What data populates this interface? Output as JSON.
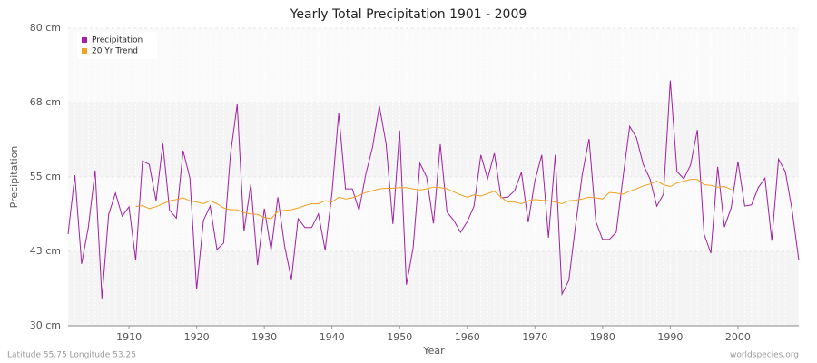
{
  "chart_data": {
    "type": "line",
    "title": "Yearly Total Precipitation 1901 - 2009",
    "x_label": "Year",
    "y_label": "Precipitation",
    "footer_left": "Latitude 55.75 Longitude 53.25",
    "footer_right": "worldspecies.org",
    "x": [
      1901,
      1902,
      1903,
      1904,
      1905,
      1906,
      1907,
      1908,
      1909,
      1910,
      1911,
      1912,
      1913,
      1914,
      1915,
      1916,
      1917,
      1918,
      1919,
      1920,
      1921,
      1922,
      1923,
      1924,
      1925,
      1926,
      1927,
      1928,
      1929,
      1930,
      1931,
      1932,
      1933,
      1934,
      1935,
      1936,
      1937,
      1938,
      1939,
      1940,
      1941,
      1942,
      1943,
      1944,
      1945,
      1946,
      1947,
      1948,
      1949,
      1950,
      1951,
      1952,
      1953,
      1954,
      1955,
      1956,
      1957,
      1958,
      1959,
      1960,
      1961,
      1962,
      1963,
      1964,
      1965,
      1966,
      1967,
      1968,
      1969,
      1970,
      1971,
      1972,
      1973,
      1974,
      1975,
      1976,
      1977,
      1978,
      1979,
      1980,
      1981,
      1982,
      1983,
      1984,
      1985,
      1986,
      1987,
      1988,
      1989,
      1990,
      1991,
      1992,
      1993,
      1994,
      1995,
      1996,
      1997,
      1998,
      1999,
      2000,
      2001,
      2002,
      2003,
      2004,
      2005,
      2006,
      2007,
      2008,
      2009
    ],
    "xlim": [
      1901,
      2009
    ],
    "xticks": [
      1910,
      1920,
      1930,
      1940,
      1950,
      1960,
      1970,
      1980,
      1990,
      2000
    ],
    "ylim": [
      30,
      80
    ],
    "yticks": [
      {
        "value": 30,
        "label": "30 cm"
      },
      {
        "value": 42.5,
        "label": "43 cm"
      },
      {
        "value": 55,
        "label": "55 cm"
      },
      {
        "value": 67.5,
        "label": "68 cm"
      },
      {
        "value": 80,
        "label": "80 cm"
      }
    ],
    "grid": true,
    "legend": "top-left",
    "series": [
      {
        "name": "Precipitation",
        "color": "#a020a0",
        "values": [
          45.4,
          55.3,
          40.4,
          46.6,
          56.1,
          34.6,
          48.7,
          52.3,
          48.4,
          50,
          41,
          57.7,
          57.1,
          51,
          60.6,
          49.4,
          48.1,
          59.4,
          54.8,
          36.1,
          47.7,
          50.1,
          42.8,
          43.9,
          58.8,
          67.2,
          45.9,
          53.8,
          40.2,
          49.7,
          42.7,
          51.6,
          43.4,
          37.8,
          48,
          46.5,
          46.5,
          48.8,
          42.7,
          52.3,
          65.7,
          53,
          53,
          49.4,
          55.5,
          60,
          66.9,
          60.6,
          47.1,
          62.8,
          36.9,
          43.1,
          57.3,
          55,
          47.2,
          60.5,
          49.1,
          47.7,
          45.7,
          47.5,
          50.1,
          58.7,
          54.7,
          59,
          51.5,
          51.6,
          52.7,
          55.8,
          47.4,
          54.4,
          58.7,
          44.8,
          58.7,
          35.3,
          37.6,
          46.8,
          55.5,
          61.4,
          47.5,
          44.5,
          44.5,
          45.7,
          54.8,
          63.5,
          61.6,
          57.1,
          54.7,
          50.1,
          52.1,
          71.2,
          55.9,
          54.7,
          57,
          62.9,
          45.4,
          42.2,
          56.7,
          46.6,
          49.8,
          57.6,
          50.1,
          50.3,
          53.2,
          54.8,
          44.3,
          58,
          55.9,
          49.5,
          41
        ]
      },
      {
        "name": "20 Yr Trend",
        "color": "#f5a020",
        "values": [
          null,
          null,
          null,
          null,
          null,
          null,
          null,
          null,
          null,
          null,
          50,
          50.2,
          49.7,
          50,
          50.5,
          51,
          51.2,
          51.5,
          51,
          50.8,
          50.5,
          51,
          50.5,
          49.8,
          49.5,
          49.5,
          49,
          48.8,
          48.7,
          48.2,
          48,
          49.2,
          49.4,
          49.5,
          49.8,
          50.2,
          50.5,
          50.5,
          51,
          50.8,
          51.6,
          51.3,
          51.5,
          51.9,
          52.4,
          52.7,
          53,
          53.1,
          53.1,
          53.2,
          53.2,
          53,
          52.8,
          53,
          53.3,
          53.2,
          53,
          52.5,
          52,
          51.6,
          52,
          51.8,
          52.2,
          52.6,
          51.6,
          50.8,
          50.8,
          50.5,
          51,
          51.2,
          51.1,
          51,
          50.8,
          50.5,
          51,
          51.1,
          51.3,
          51.6,
          51.5,
          51.3,
          52.4,
          52.3,
          52.1,
          52.6,
          53,
          53.5,
          53.8,
          54.3,
          53.7,
          53.4,
          54,
          54.3,
          54.6,
          54.6,
          53.7,
          53.6,
          53.3,
          53.4,
          52.9,
          null,
          null,
          null,
          null,
          null,
          null,
          null,
          null,
          null,
          null
        ]
      }
    ]
  }
}
